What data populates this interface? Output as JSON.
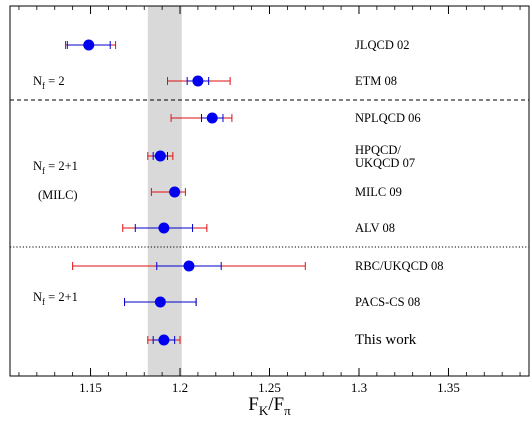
{
  "chart_data": {
    "type": "scatter",
    "title": "",
    "xlabel": {
      "main": "F",
      "sub1": "K",
      "slash": "/F",
      "sub2": "π"
    },
    "ylabel": "",
    "xlim": [
      1.105,
      1.395
    ],
    "xticks": [
      1.15,
      1.2,
      1.25,
      1.3,
      1.35
    ],
    "xtick_labels": [
      "1.15",
      "1.2",
      "1.25",
      "1.3",
      "1.35"
    ],
    "grid": false,
    "band": {
      "from": 1.182,
      "to": 1.201,
      "color": "#d9d9d9"
    },
    "colors": {
      "marker": "#0000ee",
      "stat_error": "#0000cc",
      "total_error": "#dd1111"
    },
    "points": [
      {
        "label": [
          "JLQCD 02"
        ],
        "value": 1.149,
        "stat": [
          1.137,
          1.161
        ],
        "total": [
          1.136,
          1.164
        ]
      },
      {
        "label": [
          "ETM 08"
        ],
        "value": 1.21,
        "stat": [
          1.204,
          1.216
        ],
        "total": [
          1.193,
          1.228
        ]
      },
      {
        "label": [
          "NPLQCD 06"
        ],
        "value": 1.218,
        "stat": [
          1.212,
          1.224
        ],
        "total": [
          1.195,
          1.229
        ]
      },
      {
        "label": [
          "HPQCD/",
          "UKQCD 07"
        ],
        "value": 1.189,
        "stat": [
          1.185,
          1.193
        ],
        "total": [
          1.182,
          1.196
        ]
      },
      {
        "label": [
          "MILC 09"
        ],
        "value": 1.197,
        "stat": [
          1.195,
          1.199
        ],
        "total": [
          1.184,
          1.203
        ]
      },
      {
        "label": [
          "ALV 08"
        ],
        "value": 1.191,
        "stat": [
          1.175,
          1.207
        ],
        "total": [
          1.168,
          1.215
        ]
      },
      {
        "label": [
          "RBC/UKQCD 08"
        ],
        "value": 1.205,
        "stat": [
          1.187,
          1.223
        ],
        "total": [
          1.14,
          1.27
        ]
      },
      {
        "label": [
          "PACS-CS 08"
        ],
        "value": 1.189,
        "stat": [
          1.169,
          1.209
        ],
        "total": [
          1.169,
          1.209
        ]
      },
      {
        "label": [
          "This work"
        ],
        "value": 1.191,
        "stat": [
          1.185,
          1.197
        ],
        "total": [
          1.182,
          1.2
        ]
      }
    ],
    "group_labels": [
      {
        "name": "nf2",
        "main": "N",
        "sub": "f",
        "rest": " = 2"
      },
      {
        "name": "nf21-milc",
        "main": "N",
        "sub": "f",
        "rest": " = 2+1"
      },
      {
        "name": "milc",
        "text": "(MILC)"
      },
      {
        "name": "nf21",
        "main": "N",
        "sub": "f",
        "rest": " = 2+1"
      }
    ],
    "separators": [
      {
        "style": "dashed"
      },
      {
        "style": "dotted"
      }
    ]
  }
}
